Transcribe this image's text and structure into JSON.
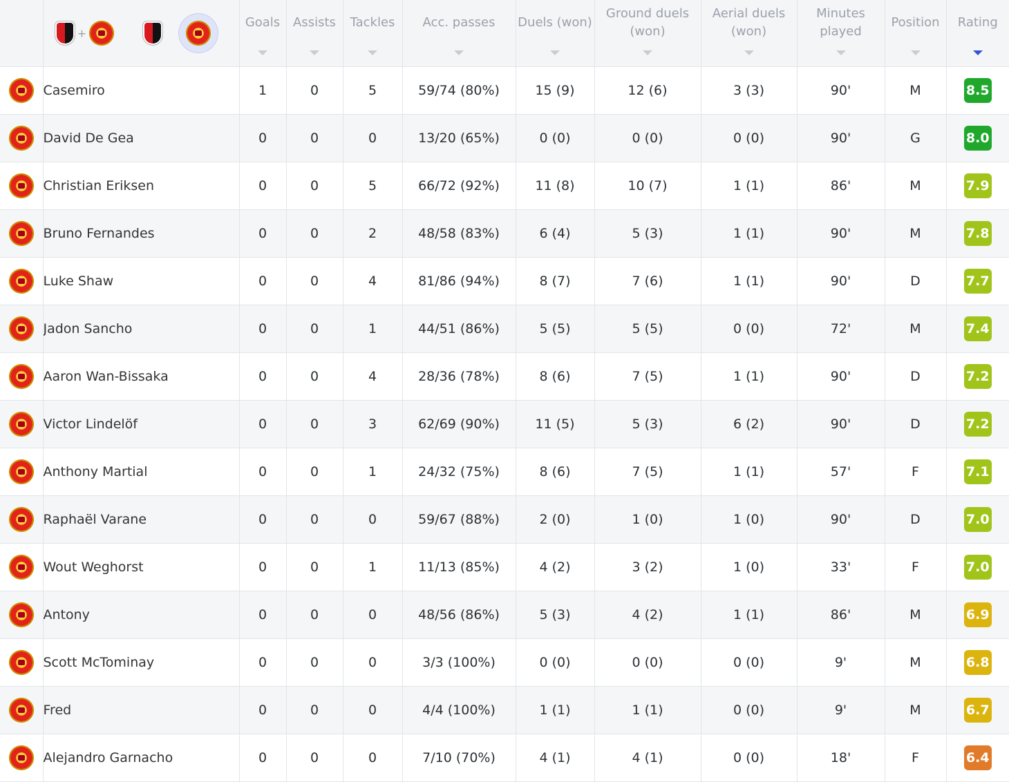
{
  "columns": [
    {
      "label": "Goals"
    },
    {
      "label": "Assists"
    },
    {
      "label": "Tackles"
    },
    {
      "label": "Acc. passes"
    },
    {
      "label": "Duels (won)"
    },
    {
      "label": "Ground duels (won)"
    },
    {
      "label": "Aerial duels (won)"
    },
    {
      "label": "Minutes played"
    },
    {
      "label": "Position"
    },
    {
      "label": "Rating",
      "sorted": true
    }
  ],
  "filters": {
    "combined": {
      "crests": [
        "afc-bournemouth-crest",
        "manchester-united-crest"
      ],
      "separator": "+"
    },
    "home": {
      "crest": "afc-bournemouth-crest"
    },
    "away": {
      "crest": "manchester-united-crest",
      "selected": true
    }
  },
  "rating_colors": {
    "8.5": "#1fa82b",
    "8.0": "#1fa82b",
    "7.9": "#a1c41b",
    "7.8": "#a1c41b",
    "7.7": "#a1c41b",
    "7.4": "#a1c41b",
    "7.2": "#a1c41b",
    "7.1": "#a1c41b",
    "7.0": "#a1c41b",
    "6.9": "#dcb40e",
    "6.8": "#dcb40e",
    "6.7": "#dcb40e",
    "6.4": "#e27b29"
  },
  "players": [
    {
      "name": "Casemiro",
      "goals": "1",
      "assists": "0",
      "tackles": "5",
      "acc_passes": "59/74 (80%)",
      "duels": "15 (9)",
      "ground_duels": "12 (6)",
      "aerial_duels": "3 (3)",
      "minutes": "90'",
      "position": "M",
      "rating": "8.5"
    },
    {
      "name": "David De Gea",
      "goals": "0",
      "assists": "0",
      "tackles": "0",
      "acc_passes": "13/20 (65%)",
      "duels": "0 (0)",
      "ground_duels": "0 (0)",
      "aerial_duels": "0 (0)",
      "minutes": "90'",
      "position": "G",
      "rating": "8.0"
    },
    {
      "name": "Christian Eriksen",
      "goals": "0",
      "assists": "0",
      "tackles": "5",
      "acc_passes": "66/72 (92%)",
      "duels": "11 (8)",
      "ground_duels": "10 (7)",
      "aerial_duels": "1 (1)",
      "minutes": "86'",
      "position": "M",
      "rating": "7.9"
    },
    {
      "name": "Bruno Fernandes",
      "goals": "0",
      "assists": "0",
      "tackles": "2",
      "acc_passes": "48/58 (83%)",
      "duels": "6 (4)",
      "ground_duels": "5 (3)",
      "aerial_duels": "1 (1)",
      "minutes": "90'",
      "position": "M",
      "rating": "7.8"
    },
    {
      "name": "Luke Shaw",
      "goals": "0",
      "assists": "0",
      "tackles": "4",
      "acc_passes": "81/86 (94%)",
      "duels": "8 (7)",
      "ground_duels": "7 (6)",
      "aerial_duels": "1 (1)",
      "minutes": "90'",
      "position": "D",
      "rating": "7.7"
    },
    {
      "name": "Jadon Sancho",
      "goals": "0",
      "assists": "0",
      "tackles": "1",
      "acc_passes": "44/51 (86%)",
      "duels": "5 (5)",
      "ground_duels": "5 (5)",
      "aerial_duels": "0 (0)",
      "minutes": "72'",
      "position": "M",
      "rating": "7.4"
    },
    {
      "name": "Aaron Wan-Bissaka",
      "goals": "0",
      "assists": "0",
      "tackles": "4",
      "acc_passes": "28/36 (78%)",
      "duels": "8 (6)",
      "ground_duels": "7 (5)",
      "aerial_duels": "1 (1)",
      "minutes": "90'",
      "position": "D",
      "rating": "7.2"
    },
    {
      "name": "Victor Lindelöf",
      "goals": "0",
      "assists": "0",
      "tackles": "3",
      "acc_passes": "62/69 (90%)",
      "duels": "11 (5)",
      "ground_duels": "5 (3)",
      "aerial_duels": "6 (2)",
      "minutes": "90'",
      "position": "D",
      "rating": "7.2"
    },
    {
      "name": "Anthony Martial",
      "goals": "0",
      "assists": "0",
      "tackles": "1",
      "acc_passes": "24/32 (75%)",
      "duels": "8 (6)",
      "ground_duels": "7 (5)",
      "aerial_duels": "1 (1)",
      "minutes": "57'",
      "position": "F",
      "rating": "7.1"
    },
    {
      "name": "Raphaël Varane",
      "goals": "0",
      "assists": "0",
      "tackles": "0",
      "acc_passes": "59/67 (88%)",
      "duels": "2 (0)",
      "ground_duels": "1 (0)",
      "aerial_duels": "1 (0)",
      "minutes": "90'",
      "position": "D",
      "rating": "7.0"
    },
    {
      "name": "Wout Weghorst",
      "goals": "0",
      "assists": "0",
      "tackles": "1",
      "acc_passes": "11/13 (85%)",
      "duels": "4 (2)",
      "ground_duels": "3 (2)",
      "aerial_duels": "1 (0)",
      "minutes": "33'",
      "position": "F",
      "rating": "7.0"
    },
    {
      "name": "Antony",
      "goals": "0",
      "assists": "0",
      "tackles": "0",
      "acc_passes": "48/56 (86%)",
      "duels": "5 (3)",
      "ground_duels": "4 (2)",
      "aerial_duels": "1 (1)",
      "minutes": "86'",
      "position": "M",
      "rating": "6.9"
    },
    {
      "name": "Scott McTominay",
      "goals": "0",
      "assists": "0",
      "tackles": "0",
      "acc_passes": "3/3 (100%)",
      "duels": "0 (0)",
      "ground_duels": "0 (0)",
      "aerial_duels": "0 (0)",
      "minutes": "9'",
      "position": "M",
      "rating": "6.8"
    },
    {
      "name": "Fred",
      "goals": "0",
      "assists": "0",
      "tackles": "0",
      "acc_passes": "4/4 (100%)",
      "duels": "1 (1)",
      "ground_duels": "1 (1)",
      "aerial_duels": "0 (0)",
      "minutes": "9'",
      "position": "M",
      "rating": "6.7"
    },
    {
      "name": "Alejandro Garnacho",
      "goals": "0",
      "assists": "0",
      "tackles": "0",
      "acc_passes": "7/10 (70%)",
      "duels": "4 (1)",
      "ground_duels": "4 (1)",
      "aerial_duels": "0 (0)",
      "minutes": "18'",
      "position": "F",
      "rating": "6.4"
    }
  ]
}
